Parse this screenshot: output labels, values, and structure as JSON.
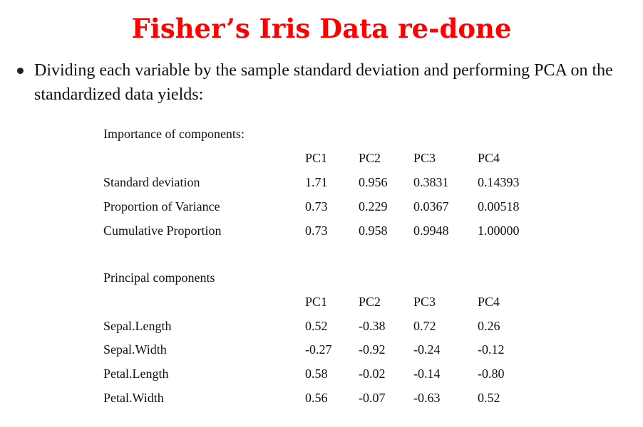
{
  "title": "Fisher’s Iris Data re-done",
  "bullet": "Dividing each variable by the sample standard deviation and performing PCA on the standardized data yields:",
  "importance": {
    "heading": "Importance of components:",
    "columns": [
      "PC1",
      "PC2",
      "PC3",
      "PC4"
    ],
    "rows": [
      {
        "label": "Standard deviation",
        "values": [
          "1.71",
          "0.956",
          "0.3831",
          "0.14393"
        ]
      },
      {
        "label": "Proportion of Variance",
        "values": [
          "0.73",
          "0.229",
          "0.0367",
          "0.00518"
        ]
      },
      {
        "label": "Cumulative Proportion",
        "values": [
          "0.73",
          "0.958",
          "0.9948",
          "1.00000"
        ]
      }
    ]
  },
  "components": {
    "heading": "Principal components",
    "columns": [
      "PC1",
      "PC2",
      "PC3",
      "PC4"
    ],
    "rows": [
      {
        "label": "Sepal.Length",
        "values": [
          "0.52",
          "-0.38",
          "0.72",
          "0.26"
        ]
      },
      {
        "label": "Sepal.Width",
        "values": [
          "-0.27",
          "-0.92",
          "-0.24",
          "-0.12"
        ]
      },
      {
        "label": "Petal.Length",
        "values": [
          "0.58",
          "-0.02",
          "-0.14",
          "-0.80"
        ]
      },
      {
        "label": "Petal.Width",
        "values": [
          "0.56",
          "-0.07",
          "-0.63",
          "0.52"
        ]
      }
    ]
  },
  "colors": {
    "title": "#ff0000",
    "text": "#111111"
  }
}
